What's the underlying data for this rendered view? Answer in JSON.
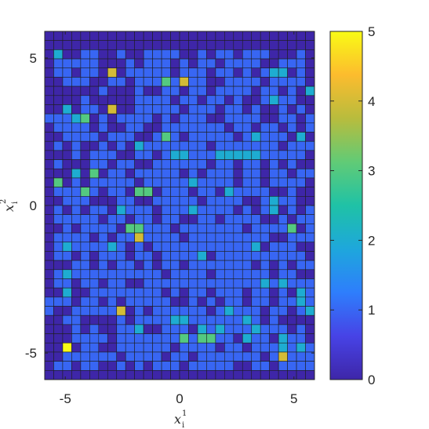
{
  "chart_data": {
    "type": "heatmap",
    "title": "",
    "xlabel": "x_i^1",
    "ylabel": "x_i^2",
    "xlabel_parts": {
      "base": "x",
      "sub": "i",
      "sup": "1"
    },
    "ylabel_parts": {
      "base": "x",
      "sub": "i",
      "sup": "2"
    },
    "xlim": [
      -5.9,
      5.9
    ],
    "ylim": [
      -5.9,
      5.9
    ],
    "x_ticks": [
      -5,
      0,
      5
    ],
    "x_tick_labels": [
      "-5",
      "0",
      "5"
    ],
    "y_ticks": [
      5,
      0,
      -5
    ],
    "y_tick_labels": [
      "5",
      "0",
      "-5"
    ],
    "grid_cols": 30,
    "grid_rows": 38,
    "grid_note": "rows listed top (y=+5.9) to bottom (y=-5.9); cells span 11.8/30 in x and 11.8/38 in y",
    "colorbar": {
      "min": 0,
      "max": 5,
      "ticks": [
        5,
        4,
        3,
        2,
        1,
        0
      ],
      "tick_labels": [
        "5",
        "4",
        "3",
        "2",
        "1",
        "0"
      ],
      "colormap": "parula",
      "colormap_stops": [
        "#3e26a8",
        "#4743e6",
        "#2e7efc",
        "#1ea7dc",
        "#1fc2a6",
        "#61cb76",
        "#b8bc3d",
        "#fcbc2e",
        "#f9fb15"
      ]
    },
    "counts": [
      "000000000000000000000000000000",
      "000000000000000000000000000000",
      "020011001001111001011011100010",
      "011111000101110101101111001110",
      "011011040111110111011010122010",
      "001110011011131411001111011110",
      "000000100010011011011110110102",
      "000010000011110110110100121100",
      "002011040011111011101101001010",
      "111230101111010111001111001101",
      "011110100110011111110110110101",
      "001111011100131011111012111020",
      "010100101021111111011111110111",
      "000101110011012211122222111110",
      "010001101100111111011011010100",
      "000203011011111010111011011011",
      "030101111101111121111011011110",
      "011131011033011101102111100100",
      "001110001100111110111100121100",
      "010101102111011121111010120101",
      "011111011011011001101111001011",
      "001011110331110111111101111301",
      "011110101141111011111111100111",
      "012111121010111111111112011100",
      "011010111011011112011111111110",
      "000110101101011011111110101011",
      "012111111111101111011111101100",
      "011011011001111111111111212111",
      "002001111111101011011101101021",
      "111011010111110010101101101121",
      "100111114010111111012111011012",
      "001100001011112211111121010000",
      "000101001120011102121112111010",
      "000111101111111313311021102110",
      "005011001111110111101101112121",
      "001111110111101101111111014111",
      "011011001010111011111001101111",
      "000000000000000000000000000000"
    ]
  }
}
